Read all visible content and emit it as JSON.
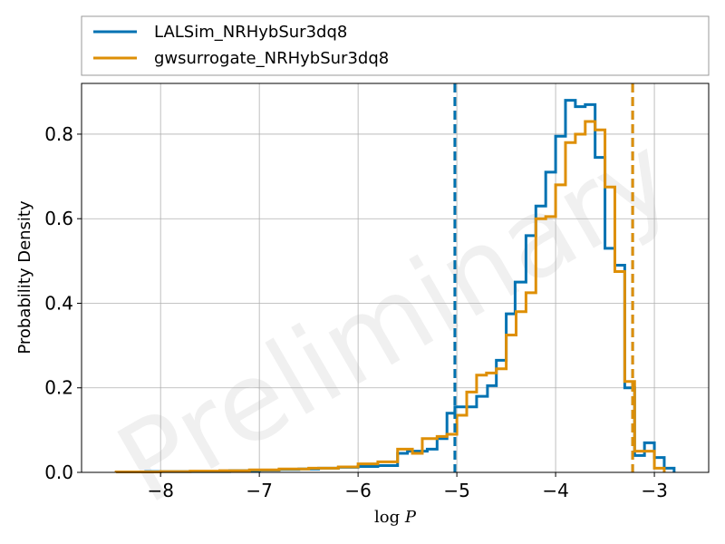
{
  "chart_data": {
    "type": "step-histogram",
    "xlabel_base": "log",
    "xlabel_var": "P",
    "ylabel": "Probability Density",
    "watermark": "Preliminary",
    "xlim": [
      -8.8,
      -2.45
    ],
    "ylim": [
      0,
      0.92
    ],
    "x_ticks": [
      -8,
      -7,
      -6,
      -5,
      -4,
      -3
    ],
    "x_tick_labels": [
      "−8",
      "−7",
      "−6",
      "−5",
      "−4",
      "−3"
    ],
    "y_ticks": [
      0.0,
      0.2,
      0.4,
      0.6,
      0.8
    ],
    "y_tick_labels": [
      "0.0",
      "0.2",
      "0.4",
      "0.6",
      "0.8"
    ],
    "grid": true,
    "legend_position": "above-plot",
    "series": [
      {
        "name": "LALSim_NRHybSur3dq8",
        "color": "#0072b2",
        "edges": [
          -8.15,
          -7.9,
          -7.6,
          -7.3,
          -7.0,
          -6.8,
          -6.6,
          -6.4,
          -6.2,
          -6.0,
          -5.8,
          -5.6,
          -5.5,
          -5.4,
          -5.3,
          -5.2,
          -5.1,
          -5.02,
          -4.92,
          -4.8,
          -4.69,
          -4.6,
          -4.5,
          -4.41,
          -4.3,
          -4.2,
          -4.1,
          -4.0,
          -3.9,
          -3.8,
          -3.7,
          -3.6,
          -3.5,
          -3.4,
          -3.3,
          -3.2,
          -3.1,
          -3.0,
          -2.9,
          -2.8
        ],
        "values": [
          0.002,
          0.002,
          0.002,
          0.004,
          0.005,
          0.007,
          0.008,
          0.01,
          0.012,
          0.014,
          0.016,
          0.045,
          0.05,
          0.05,
          0.055,
          0.08,
          0.14,
          0.155,
          0.155,
          0.18,
          0.205,
          0.265,
          0.375,
          0.45,
          0.56,
          0.63,
          0.71,
          0.795,
          0.88,
          0.865,
          0.87,
          0.745,
          0.53,
          0.49,
          0.2,
          0.04,
          0.07,
          0.035,
          0.01
        ],
        "vline": -5.02
      },
      {
        "name": "gwsurrogate_NRHybSur3dq8",
        "color": "#de8f05",
        "edges": [
          -8.45,
          -8.0,
          -7.7,
          -7.4,
          -7.1,
          -6.8,
          -6.5,
          -6.2,
          -6.0,
          -5.8,
          -5.6,
          -5.45,
          -5.35,
          -5.2,
          -5.1,
          -5.0,
          -4.9,
          -4.8,
          -4.7,
          -4.6,
          -4.5,
          -4.4,
          -4.3,
          -4.2,
          -4.1,
          -4.0,
          -3.9,
          -3.8,
          -3.7,
          -3.6,
          -3.5,
          -3.4,
          -3.3,
          -3.2,
          -3.1,
          -3.0,
          -2.9
        ],
        "values": [
          0.001,
          0.002,
          0.003,
          0.004,
          0.006,
          0.008,
          0.01,
          0.013,
          0.02,
          0.025,
          0.055,
          0.045,
          0.08,
          0.085,
          0.09,
          0.135,
          0.19,
          0.23,
          0.235,
          0.245,
          0.325,
          0.38,
          0.425,
          0.6,
          0.605,
          0.68,
          0.78,
          0.8,
          0.83,
          0.81,
          0.675,
          0.475,
          0.215,
          0.05,
          0.05,
          0.01
        ],
        "vline": -3.22
      }
    ],
    "extra_vlines": [
      {
        "series": 0,
        "x": -3.22
      },
      {
        "series": 1,
        "x": -5.02
      }
    ]
  }
}
